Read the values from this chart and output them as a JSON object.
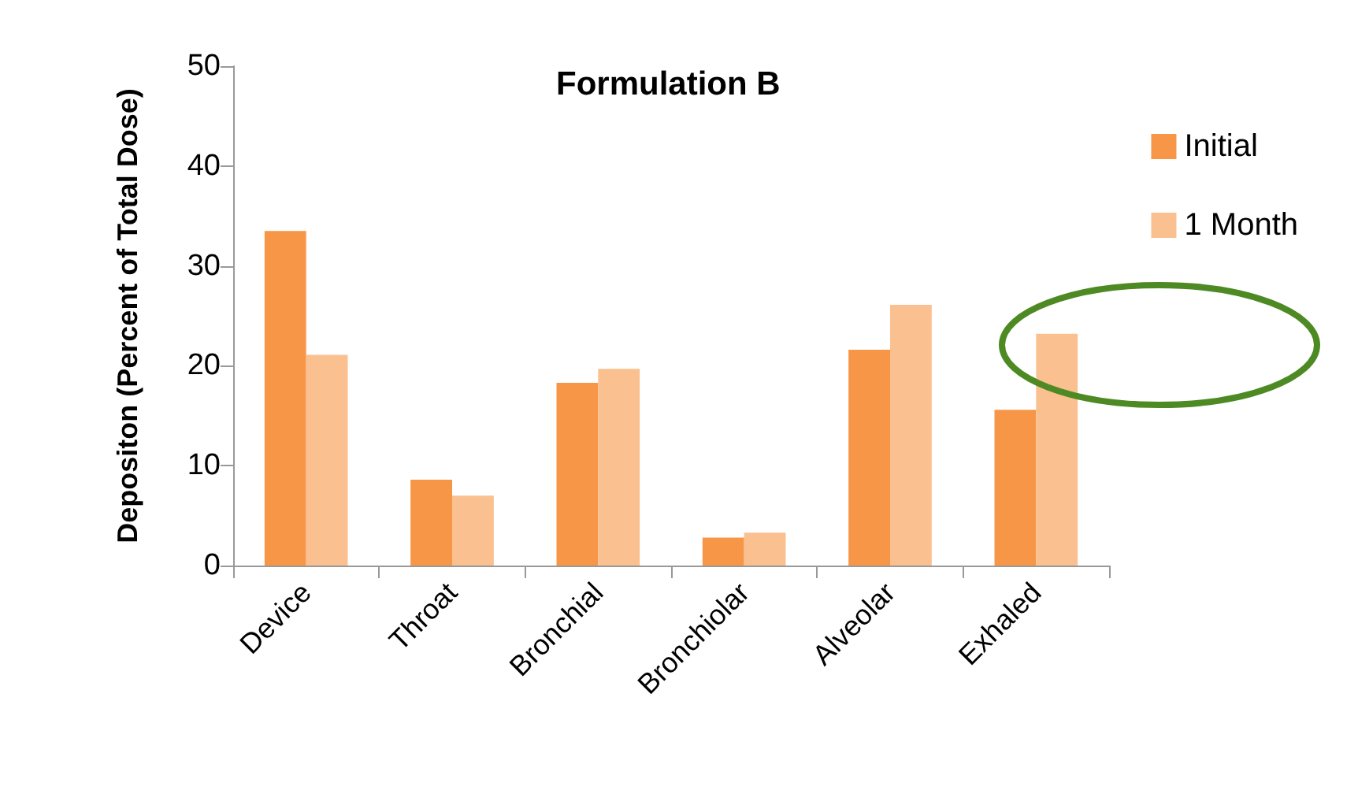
{
  "chart_data": {
    "type": "bar",
    "title": "Formulation B",
    "ylabel": "Depositon (Percent of Total Dose)",
    "categories": [
      "Device",
      "Throat",
      "Bronchial",
      "Bronchiolar",
      "Alveolar",
      "Exhaled"
    ],
    "series": [
      {
        "name": "Initial",
        "color": "#f79646",
        "values": [
          33.5,
          8.6,
          18.3,
          2.8,
          21.6,
          15.6
        ]
      },
      {
        "name": "1 Month",
        "color": "#fac090",
        "values": [
          21.1,
          7.0,
          19.7,
          3.3,
          26.1,
          23.2
        ]
      }
    ],
    "ylim": [
      0,
      50
    ],
    "yticks": [
      0,
      10,
      20,
      30,
      40,
      50
    ],
    "grid": false,
    "legend": "top right"
  }
}
